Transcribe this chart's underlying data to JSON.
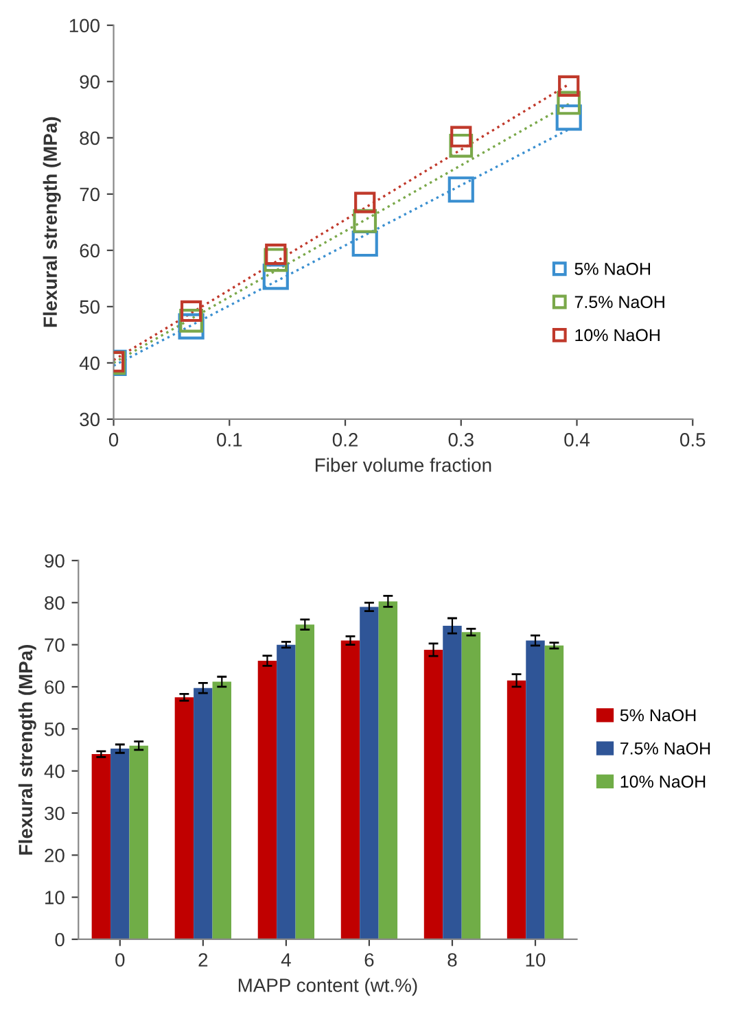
{
  "chart_data": [
    {
      "type": "scatter",
      "xlabel": "Fiber volume fraction",
      "ylabel": "Flexural strength (MPa)",
      "xlim": [
        0,
        0.5
      ],
      "ylim": [
        30,
        100
      ],
      "xticks": [
        0,
        0.1,
        0.2,
        0.3,
        0.4,
        0.5
      ],
      "yticks": [
        30,
        40,
        50,
        60,
        70,
        80,
        90,
        100
      ],
      "grid": false,
      "legend": "bottom right",
      "marker": "square",
      "series": [
        {
          "name": "5% NaOH",
          "color": "#3a8fd0",
          "x": [
            0,
            0.067,
            0.14,
            0.217,
            0.3,
            0.393
          ],
          "values": [
            40,
            46.5,
            55.3,
            61.2,
            70.8,
            83.6
          ]
        },
        {
          "name": "7.5% NaOH",
          "color": "#7aa84a",
          "x": [
            0,
            0.067,
            0.14,
            0.217,
            0.3,
            0.393
          ],
          "values": [
            40,
            47.5,
            58.3,
            65.2,
            78.6,
            86.2
          ]
        },
        {
          "name": "10% NaOH",
          "color": "#c0392b",
          "x": [
            0,
            0.067,
            0.14,
            0.217,
            0.3,
            0.393
          ],
          "values": [
            40.2,
            49.2,
            59.3,
            68.5,
            80.2,
            89.2
          ]
        },
        {
          "type": "line",
          "color": "#3a8fd0",
          "line_style": "dotted",
          "marker": "none",
          "x": [
            0,
            0.393
          ],
          "values": [
            39.5,
            81.5
          ]
        },
        {
          "type": "line",
          "color": "#7aa84a",
          "line_style": "dotted",
          "marker": "none",
          "x": [
            0,
            0.393
          ],
          "values": [
            40,
            86
          ]
        },
        {
          "type": "line",
          "color": "#c0392b",
          "line_style": "dotted",
          "marker": "none",
          "x": [
            0,
            0.393
          ],
          "values": [
            40.5,
            89.5
          ]
        }
      ]
    },
    {
      "type": "bar",
      "xlabel": "MAPP content (wt.%)",
      "ylabel": "Flexural strength (MPa)",
      "categories": [
        "0",
        "2",
        "4",
        "6",
        "8",
        "10"
      ],
      "ylim": [
        0,
        90
      ],
      "yticks": [
        0,
        10,
        20,
        30,
        40,
        50,
        60,
        70,
        80,
        90
      ],
      "grid": false,
      "legend": "right",
      "series": [
        {
          "name": "5% NaOH",
          "color": "#c00000",
          "values": [
            44,
            57.5,
            66.2,
            71,
            68.8,
            61.5
          ],
          "errors": [
            0.7,
            0.8,
            1.2,
            1,
            1.5,
            1.5
          ]
        },
        {
          "name": "7.5% NaOH",
          "color": "#2f5597",
          "values": [
            45.3,
            59.7,
            70,
            79,
            74.5,
            71
          ],
          "errors": [
            1,
            1.2,
            0.7,
            1,
            1.8,
            1.2
          ]
        },
        {
          "name": "10% NaOH",
          "color": "#70ad47",
          "values": [
            46,
            61.2,
            74.8,
            80.3,
            73,
            69.8
          ],
          "errors": [
            1,
            1.2,
            1.2,
            1.3,
            0.8,
            0.7
          ]
        }
      ]
    }
  ]
}
